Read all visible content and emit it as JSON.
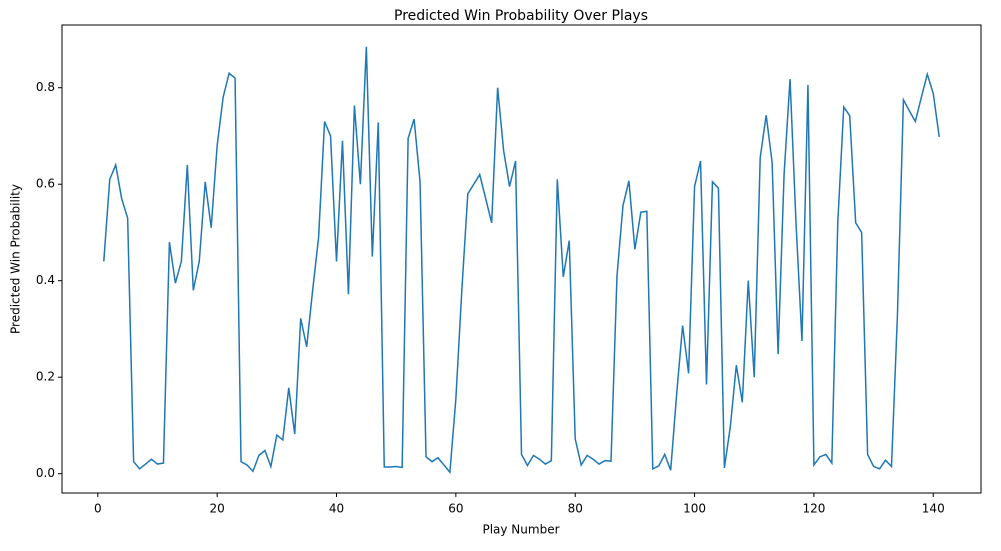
{
  "chart_data": {
    "type": "line",
    "title": "Predicted Win Probability Over Plays",
    "x_label": "Play Number",
    "y_label": "Predicted Win Probability",
    "x": [
      1,
      2,
      3,
      4,
      5,
      6,
      7,
      8,
      9,
      10,
      11,
      12,
      13,
      14,
      15,
      16,
      17,
      18,
      19,
      20,
      21,
      22,
      23,
      24,
      25,
      26,
      27,
      28,
      29,
      30,
      31,
      32,
      33,
      34,
      35,
      36,
      37,
      38,
      39,
      40,
      41,
      42,
      43,
      44,
      45,
      46,
      47,
      48,
      49,
      50,
      51,
      52,
      53,
      54,
      55,
      56,
      57,
      58,
      59,
      60,
      61,
      62,
      63,
      64,
      65,
      66,
      67,
      68,
      69,
      70,
      71,
      72,
      73,
      74,
      75,
      76,
      77,
      78,
      79,
      80,
      81,
      82,
      83,
      84,
      85,
      86,
      87,
      88,
      89,
      90,
      91,
      92,
      93,
      94,
      95,
      96,
      97,
      98,
      99,
      100,
      101,
      102,
      103,
      104,
      105,
      106,
      107,
      108,
      109,
      110,
      111,
      112,
      113,
      114,
      115,
      116,
      117,
      118,
      119,
      120,
      121,
      122,
      123,
      124,
      125,
      126,
      127,
      128,
      129,
      130,
      131,
      132,
      133,
      134,
      135,
      136,
      137,
      138,
      139,
      140,
      141
    ],
    "series": [
      {
        "color": "#1f77b4",
        "values": [
          0.44,
          0.61,
          0.64,
          0.57,
          0.53,
          0.025,
          0.01,
          0.02,
          0.03,
          0.02,
          0.022,
          0.48,
          0.395,
          0.44,
          0.64,
          0.38,
          0.44,
          0.605,
          0.51,
          0.68,
          0.78,
          0.83,
          0.82,
          0.025,
          0.018,
          0.005,
          0.038,
          0.048,
          0.015,
          0.08,
          0.07,
          0.178,
          0.082,
          0.322,
          0.263,
          0.38,
          0.49,
          0.73,
          0.7,
          0.44,
          0.69,
          0.372,
          0.763,
          0.6,
          0.885,
          0.45,
          0.728,
          0.014,
          0.014,
          0.015,
          0.013,
          0.695,
          0.735,
          0.605,
          0.035,
          0.025,
          0.033,
          0.018,
          0.003,
          0.155,
          0.38,
          0.58,
          0.6,
          0.62,
          0.57,
          0.52,
          0.8,
          0.67,
          0.595,
          0.648,
          0.04,
          0.017,
          0.038,
          0.03,
          0.02,
          0.027,
          0.61,
          0.408,
          0.483,
          0.072,
          0.018,
          0.038,
          0.03,
          0.02,
          0.027,
          0.026,
          0.41,
          0.555,
          0.607,
          0.465,
          0.542,
          0.544,
          0.01,
          0.016,
          0.04,
          0.007,
          0.165,
          0.307,
          0.208,
          0.595,
          0.648,
          0.185,
          0.605,
          0.592,
          0.012,
          0.098,
          0.225,
          0.148,
          0.4,
          0.2,
          0.655,
          0.743,
          0.645,
          0.248,
          0.62,
          0.818,
          0.52,
          0.275,
          0.806,
          0.018,
          0.035,
          0.04,
          0.022,
          0.52,
          0.76,
          0.742,
          0.52,
          0.5,
          0.04,
          0.015,
          0.01,
          0.028,
          0.015,
          0.33,
          0.775,
          0.752,
          0.73,
          0.78,
          0.828,
          0.788,
          0.698
        ]
      }
    ],
    "xlim": [
      -6,
      148
    ],
    "xticks": [
      0,
      20,
      40,
      60,
      80,
      100,
      120,
      140
    ],
    "ylim": [
      -0.04,
      0.93
    ],
    "yticks": [
      {
        "value": 0,
        "label": "0.0"
      },
      0.2,
      0.4,
      0.6,
      0.8
    ],
    "grid": false
  }
}
